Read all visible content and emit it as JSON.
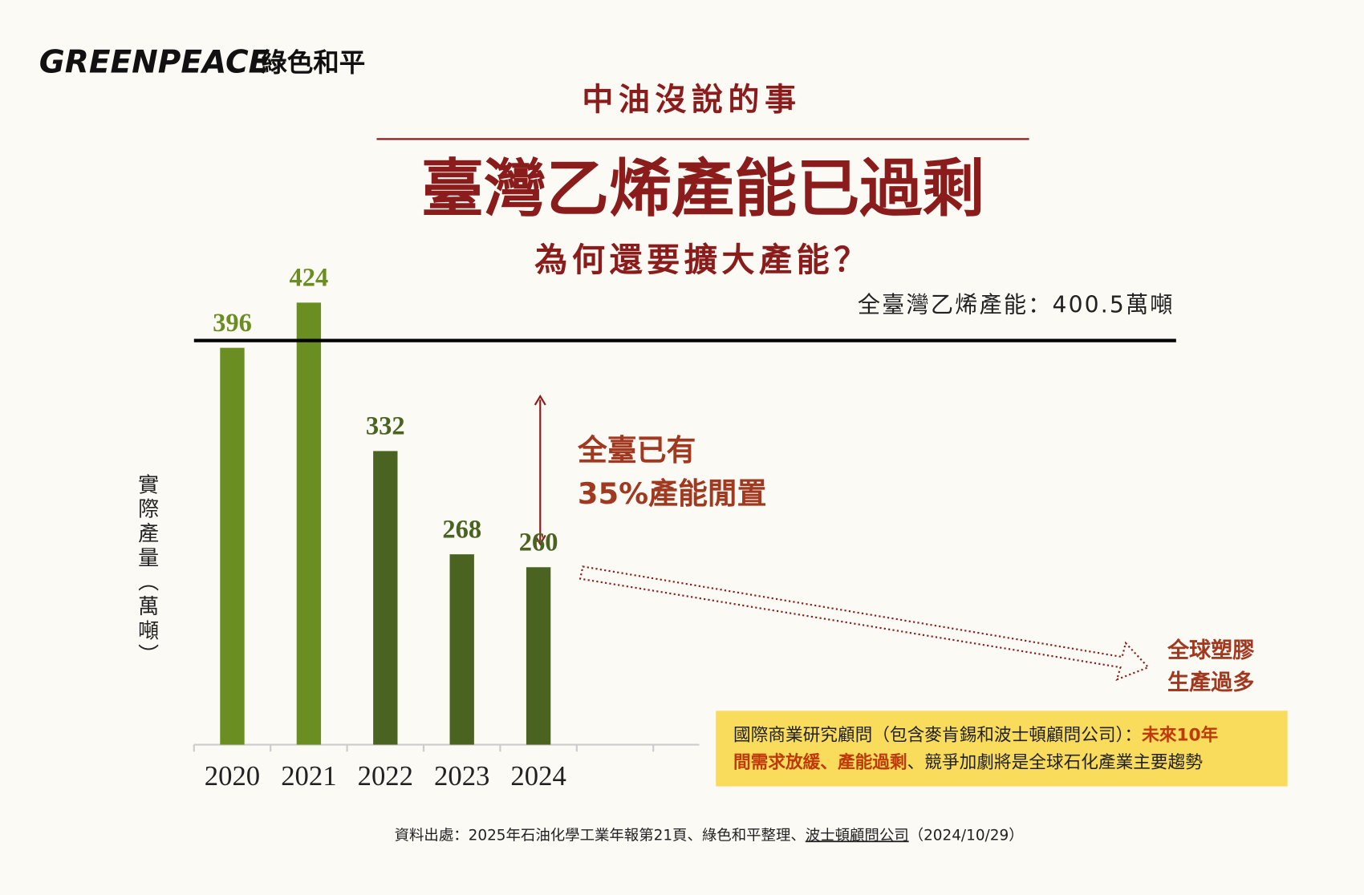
{
  "logo": {
    "text": "GREENPEACE",
    "chinese": "綠色和平"
  },
  "chart_data": {
    "type": "bar",
    "kicker": "中油沒說的事",
    "title": "臺灣乙烯產能已過剩",
    "subtitle": "為何還要擴大產能？",
    "y_label": "實際產量（萬噸）",
    "categories": [
      "2020",
      "2021",
      "2022",
      "2023",
      "2024"
    ],
    "values": [
      396,
      424,
      332,
      268,
      260
    ],
    "colors": [
      "#6b8e23",
      "#6b8e23",
      "#4a6320",
      "#4a6320",
      "#4a6320"
    ],
    "ylim": [
      150,
      450
    ],
    "reference_line": {
      "value": 400.5,
      "label": "全臺灣乙烯產能：400.5萬噸",
      "color": "#000000"
    },
    "annotations": [
      {
        "lines": [
          "全臺已有",
          "35%產能閒置"
        ]
      },
      {
        "lines": [
          "全球塑膠",
          "生產過多"
        ]
      }
    ],
    "callout": {
      "lines": [
        [
          {
            "text": "國際商業研究顧問（包含麥肯錫和波士頓顧問公司）：",
            "highlight": false
          },
          {
            "text": "未來10年",
            "highlight": true
          }
        ],
        [
          {
            "text": "間需求放緩、產能過剩",
            "highlight": true
          },
          {
            "text": "、競爭加劇將是全球石化產業主要趨勢",
            "highlight": false
          }
        ]
      ]
    },
    "source": [
      {
        "text": "資料出處：2025年石油化學工業年報第21頁、綠色和平整理、",
        "underline": false
      },
      {
        "text": "波士頓顧問公司",
        "underline": true
      },
      {
        "text": "（2024/10/29）",
        "underline": false
      }
    ]
  }
}
